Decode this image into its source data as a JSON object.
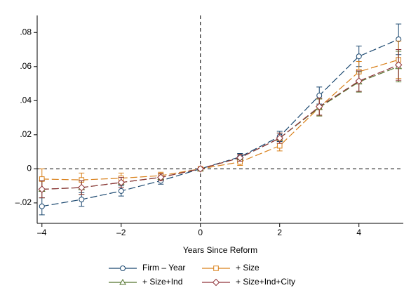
{
  "chart_data": {
    "type": "line",
    "x_label": "Years Since Reform",
    "x": [
      -4,
      -3,
      -2,
      -1,
      0,
      1,
      2,
      3,
      4,
      5
    ],
    "xlim": [
      -4.12,
      5.12
    ],
    "xticks": [
      {
        "value": -4,
        "label": "–4"
      },
      {
        "value": -2,
        "label": "–2"
      },
      0,
      2,
      4
    ],
    "ylim": [
      -0.032,
      0.09
    ],
    "yticks": [
      {
        "value": -0.02,
        "label": "–.02"
      },
      0,
      {
        "value": 0.02,
        "label": ".02"
      },
      {
        "value": 0.04,
        "label": ".04"
      },
      {
        "value": 0.06,
        "label": ".06"
      },
      {
        "value": 0.08,
        "label": ".08"
      }
    ],
    "xline": 0,
    "yline": 0,
    "series": [
      {
        "name": "Firm – Year",
        "color": "#1a476f",
        "marker": "circle",
        "values": [
          -0.022,
          -0.018,
          -0.013,
          -0.007,
          0,
          0.007,
          0.019,
          0.043,
          0.066,
          0.076
        ],
        "errors": [
          0.005,
          0.004,
          0.003,
          0.002,
          0,
          0.002,
          0.003,
          0.005,
          0.006,
          0.009
        ]
      },
      {
        "name": "+ Size",
        "color": "#d9801a",
        "marker": "square",
        "values": [
          -0.006,
          -0.0065,
          -0.0055,
          -0.004,
          0,
          0.004,
          0.0135,
          0.036,
          0.057,
          0.064
        ],
        "errors": [
          0.006,
          0.004,
          0.003,
          0.002,
          0,
          0.002,
          0.003,
          0.005,
          0.006,
          0.011
        ]
      },
      {
        "name": "+ Size+Ind",
        "color": "#55752f",
        "marker": "triangle",
        "values": [
          -0.012,
          -0.011,
          -0.008,
          -0.005,
          0,
          0.0065,
          0.018,
          0.036,
          0.051,
          0.06
        ],
        "errors": [
          0.005,
          0.004,
          0.003,
          0.002,
          0,
          0.002,
          0.003,
          0.005,
          0.006,
          0.009
        ]
      },
      {
        "name": "+ Size+Ind+City",
        "color": "#90353b",
        "marker": "diamond",
        "values": [
          -0.012,
          -0.011,
          -0.008,
          -0.005,
          0,
          0.0065,
          0.018,
          0.0365,
          0.0515,
          0.061
        ],
        "errors": [
          0.005,
          0.004,
          0.003,
          0.002,
          0,
          0.002,
          0.003,
          0.005,
          0.006,
          0.009
        ]
      }
    ]
  }
}
